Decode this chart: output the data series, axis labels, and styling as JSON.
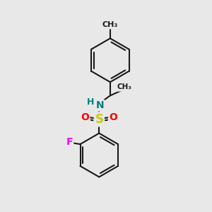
{
  "background_color": "#e8e8e8",
  "bond_color": "#1a1a1a",
  "bond_width": 1.5,
  "atom_colors": {
    "N": "#008080",
    "S": "#cccc00",
    "O": "#ff0000",
    "F": "#ff00ff",
    "C": "#1a1a1a",
    "H": "#008080"
  },
  "figsize": [
    3.0,
    3.0
  ],
  "dpi": 100
}
